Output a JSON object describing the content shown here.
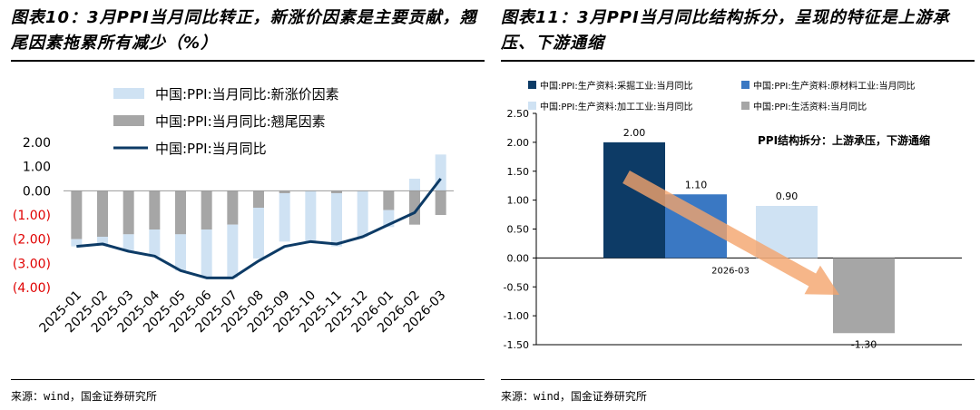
{
  "left": {
    "title": "图表10：3月PPI当月同比转正，新涨价因素是主要贡献，翘尾因素拖累所有减少（%）",
    "source": "来源：wind，国金证券研究所",
    "chart_data": {
      "type": "bar",
      "categories": [
        "2025-01",
        "2025-02",
        "2025-03",
        "2025-04",
        "2025-05",
        "2025-06",
        "2025-07",
        "2025-08",
        "2025-09",
        "2025-10",
        "2025-11",
        "2025-12",
        "2026-01",
        "2026-02",
        "2026-03"
      ],
      "series": [
        {
          "name": "中国:PPI:当月同比:新涨价因素",
          "type": "bar",
          "color": "#cfe2f3",
          "values": [
            -0.3,
            -0.3,
            -0.7,
            -1.1,
            -1.5,
            -2.0,
            -2.2,
            -2.1,
            -2.0,
            -2.1,
            -2.2,
            -1.9,
            -0.7,
            0.5,
            1.5
          ]
        },
        {
          "name": "中国:PPI:当月同比:翘尾因素",
          "type": "bar",
          "color": "#a6a6a6",
          "values": [
            -2.0,
            -1.9,
            -1.8,
            -1.6,
            -1.8,
            -1.6,
            -1.4,
            -0.7,
            -0.1,
            0.0,
            -0.1,
            0.0,
            -0.8,
            -1.4,
            -1.0
          ]
        },
        {
          "name": "中国:PPI:当月同比",
          "type": "line",
          "color": "#0d3b66",
          "values": [
            -2.3,
            -2.2,
            -2.5,
            -2.7,
            -3.3,
            -3.6,
            -3.6,
            -2.9,
            -2.3,
            -2.1,
            -2.2,
            -1.9,
            -1.4,
            -0.9,
            0.5
          ]
        }
      ],
      "ylim": [
        -4,
        2
      ],
      "yticks": [
        "2.00",
        "1.00",
        "0.00",
        "(1.00)",
        "(2.00)",
        "(3.00)",
        "(4.00)"
      ],
      "ytick_values": [
        2,
        1,
        0,
        -1,
        -2,
        -3,
        -4
      ],
      "negative_tick_color": "#e00000",
      "legend_position": "top"
    }
  },
  "right": {
    "title": "图表11：3月PPI当月同比结构拆分，呈现的特征是上游承压、下游通缩",
    "source": "来源：wind，国金证券研究所",
    "chart_data": {
      "type": "bar",
      "categories": [
        "2026-03"
      ],
      "series": [
        {
          "name": "中国:PPI:生产资料:采掘工业:当月同比",
          "color": "#0d3b66",
          "value": 2.0,
          "label": "2.00"
        },
        {
          "name": "中国:PPI:生产资料:原材料工业:当月同比",
          "color": "#3a78c3",
          "value": 1.1,
          "label": "1.10"
        },
        {
          "name": "中国:PPI:生产资料:加工工业:当月同比",
          "color": "#cfe2f3",
          "value": 0.9,
          "label": "0.90"
        },
        {
          "name": "中国:PPI:生活资料:当月同比",
          "color": "#a6a6a6",
          "value": -1.3,
          "label": "-1.30"
        }
      ],
      "ylim": [
        -1.5,
        2.5
      ],
      "yticks": [
        "2.50",
        "2.00",
        "1.50",
        "1.00",
        "0.50",
        "0.00",
        "-0.50",
        "-1.00",
        "-1.50"
      ],
      "ytick_values": [
        2.5,
        2.0,
        1.5,
        1.0,
        0.5,
        0.0,
        -0.5,
        -1.0,
        -1.5
      ],
      "annotation": "PPI结构拆分：上游承压，下游通缩",
      "arrow_color": "#f4a46c",
      "legend_position": "top"
    }
  }
}
